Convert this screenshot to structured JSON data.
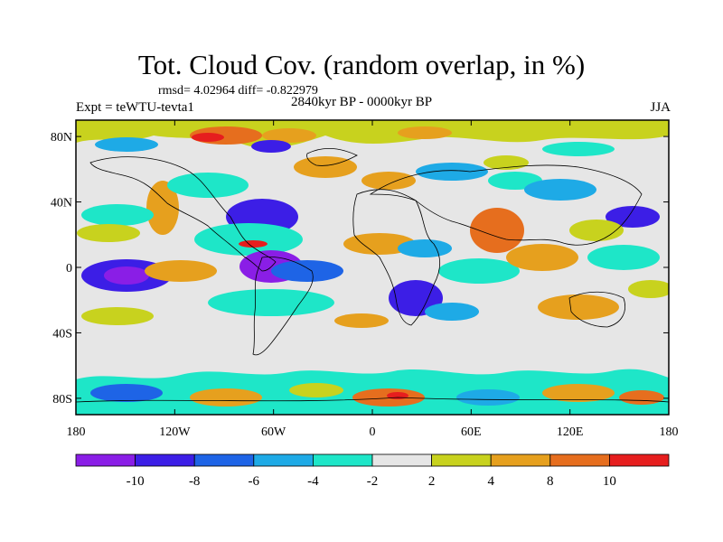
{
  "header": {
    "title": "Tot. Cloud Cov. (random overlap, in %)",
    "stats": "rmsd= 4.02964 diff= -0.822979",
    "experiment": "Expt = teWTU-tevta1",
    "period": "2840kyr BP - 0000kyr BP",
    "season": "JJA"
  },
  "map": {
    "lat_labels": [
      "80N",
      "40N",
      "0",
      "40S",
      "80S"
    ],
    "lon_labels": [
      "180",
      "120W",
      "60W",
      "0",
      "60E",
      "120E",
      "180"
    ],
    "lon_range": [
      -180,
      180
    ],
    "lat_range": [
      -90,
      90
    ],
    "ocean_color": "#e6e6e6"
  },
  "colorbar": {
    "colors": [
      "#8a1ee6",
      "#3c1ee6",
      "#1e64e6",
      "#1eaae6",
      "#1ee6c8",
      "#e6e6e6",
      "#c8d21e",
      "#e6a01e",
      "#e66e1e",
      "#e61e1e"
    ],
    "labels": [
      "-10",
      "-8",
      "-6",
      "-4",
      "-2",
      "2",
      "4",
      "8",
      "10"
    ]
  }
}
